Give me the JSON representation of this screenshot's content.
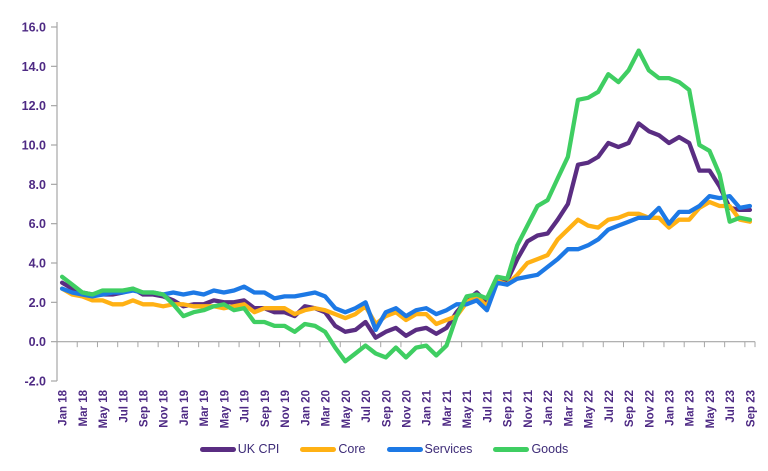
{
  "chart_data": {
    "type": "line",
    "title": "",
    "xlabel": "",
    "ylabel": "",
    "ylim": [
      -2,
      16
    ],
    "y_tick_step": 2,
    "grid": false,
    "legend_position": "bottom",
    "x_start": "Jan 18",
    "x_end": "Sep 23",
    "months_per_tick": 2,
    "x_tick_labels": [
      "Jan 18",
      "Mar 18",
      "May 18",
      "Jul 18",
      "Sep 18",
      "Nov 18",
      "Jan 19",
      "Mar 19",
      "May 19",
      "Jul 19",
      "Sep 19",
      "Nov 19",
      "Jan 20",
      "Mar 20",
      "May 20",
      "Jul 20",
      "Sep 20",
      "Nov 20",
      "Jan 21",
      "Mar 21",
      "May 21",
      "Jul 21",
      "Sep 21",
      "Nov 21",
      "Jan 22",
      "Mar 22",
      "May 22",
      "Jul 22",
      "Sep 22",
      "Nov 22",
      "Jan 23",
      "Mar 23",
      "May 23",
      "Jul 23",
      "Sep 23"
    ],
    "y_tick_labels": [
      "16.0",
      "14.0",
      "12.0",
      "10.0",
      "8.0",
      "6.0",
      "4.0",
      "2.0",
      "0.0",
      "-2.0"
    ],
    "axis": {
      "label_color": "#4E2A84",
      "line_color": "#A6A6A6"
    },
    "series": [
      {
        "name": "UK CPI",
        "color": "#5A2D82",
        "values": [
          3.0,
          2.7,
          2.5,
          2.4,
          2.4,
          2.4,
          2.5,
          2.7,
          2.4,
          2.4,
          2.3,
          2.1,
          1.8,
          1.9,
          1.9,
          2.1,
          2.0,
          2.0,
          2.1,
          1.7,
          1.7,
          1.5,
          1.5,
          1.3,
          1.8,
          1.7,
          1.5,
          0.8,
          0.5,
          0.6,
          1.0,
          0.2,
          0.5,
          0.7,
          0.3,
          0.6,
          0.7,
          0.4,
          0.7,
          1.5,
          2.1,
          2.5,
          2.0,
          3.2,
          3.1,
          4.2,
          5.1,
          5.4,
          5.5,
          6.2,
          7.0,
          9.0,
          9.1,
          9.4,
          10.1,
          9.9,
          10.1,
          11.1,
          10.7,
          10.5,
          10.1,
          10.4,
          10.1,
          8.7,
          8.7,
          7.9,
          6.8,
          6.7,
          6.7
        ]
      },
      {
        "name": "Core",
        "color": "#FFB114",
        "values": [
          2.7,
          2.4,
          2.3,
          2.1,
          2.1,
          1.9,
          1.9,
          2.1,
          1.9,
          1.9,
          1.8,
          1.9,
          1.9,
          1.8,
          1.8,
          1.8,
          1.7,
          1.8,
          1.9,
          1.5,
          1.7,
          1.7,
          1.7,
          1.4,
          1.6,
          1.7,
          1.6,
          1.4,
          1.2,
          1.4,
          1.8,
          0.9,
          1.3,
          1.5,
          1.1,
          1.4,
          1.4,
          0.9,
          1.1,
          1.3,
          2.0,
          2.3,
          1.8,
          3.1,
          2.9,
          3.4,
          4.0,
          4.2,
          4.4,
          5.2,
          5.7,
          6.2,
          5.9,
          5.8,
          6.2,
          6.3,
          6.5,
          6.5,
          6.3,
          6.3,
          5.8,
          6.2,
          6.2,
          6.8,
          7.1,
          6.9,
          6.9,
          6.2,
          6.1
        ]
      },
      {
        "name": "Services",
        "color": "#1D79E5",
        "values": [
          2.7,
          2.5,
          2.4,
          2.3,
          2.4,
          2.5,
          2.5,
          2.6,
          2.5,
          2.5,
          2.4,
          2.5,
          2.4,
          2.5,
          2.4,
          2.6,
          2.5,
          2.6,
          2.8,
          2.5,
          2.5,
          2.2,
          2.3,
          2.3,
          2.4,
          2.5,
          2.3,
          1.7,
          1.5,
          1.7,
          2.0,
          0.6,
          1.5,
          1.7,
          1.3,
          1.6,
          1.7,
          1.4,
          1.6,
          1.9,
          1.9,
          2.1,
          1.6,
          3.0,
          2.9,
          3.2,
          3.3,
          3.4,
          3.8,
          4.2,
          4.7,
          4.7,
          4.9,
          5.2,
          5.7,
          5.9,
          6.1,
          6.3,
          6.3,
          6.8,
          6.0,
          6.6,
          6.6,
          6.9,
          7.4,
          7.3,
          7.4,
          6.8,
          6.9
        ]
      },
      {
        "name": "Goods",
        "color": "#3FCE62",
        "values": [
          3.3,
          2.9,
          2.5,
          2.4,
          2.6,
          2.6,
          2.6,
          2.7,
          2.5,
          2.5,
          2.4,
          1.9,
          1.3,
          1.5,
          1.6,
          1.8,
          1.9,
          1.6,
          1.7,
          1.0,
          1.0,
          0.8,
          0.8,
          0.5,
          0.9,
          0.8,
          0.5,
          -0.3,
          -1.0,
          -0.6,
          -0.2,
          -0.6,
          -0.8,
          -0.3,
          -0.8,
          -0.3,
          -0.2,
          -0.7,
          -0.2,
          1.3,
          2.3,
          2.4,
          2.2,
          3.3,
          3.2,
          4.9,
          5.9,
          6.9,
          7.2,
          8.3,
          9.4,
          12.3,
          12.4,
          12.7,
          13.6,
          13.2,
          13.8,
          14.8,
          13.8,
          13.4,
          13.4,
          13.2,
          12.8,
          10.0,
          9.7,
          8.5,
          6.1,
          6.3,
          6.2
        ]
      }
    ]
  }
}
